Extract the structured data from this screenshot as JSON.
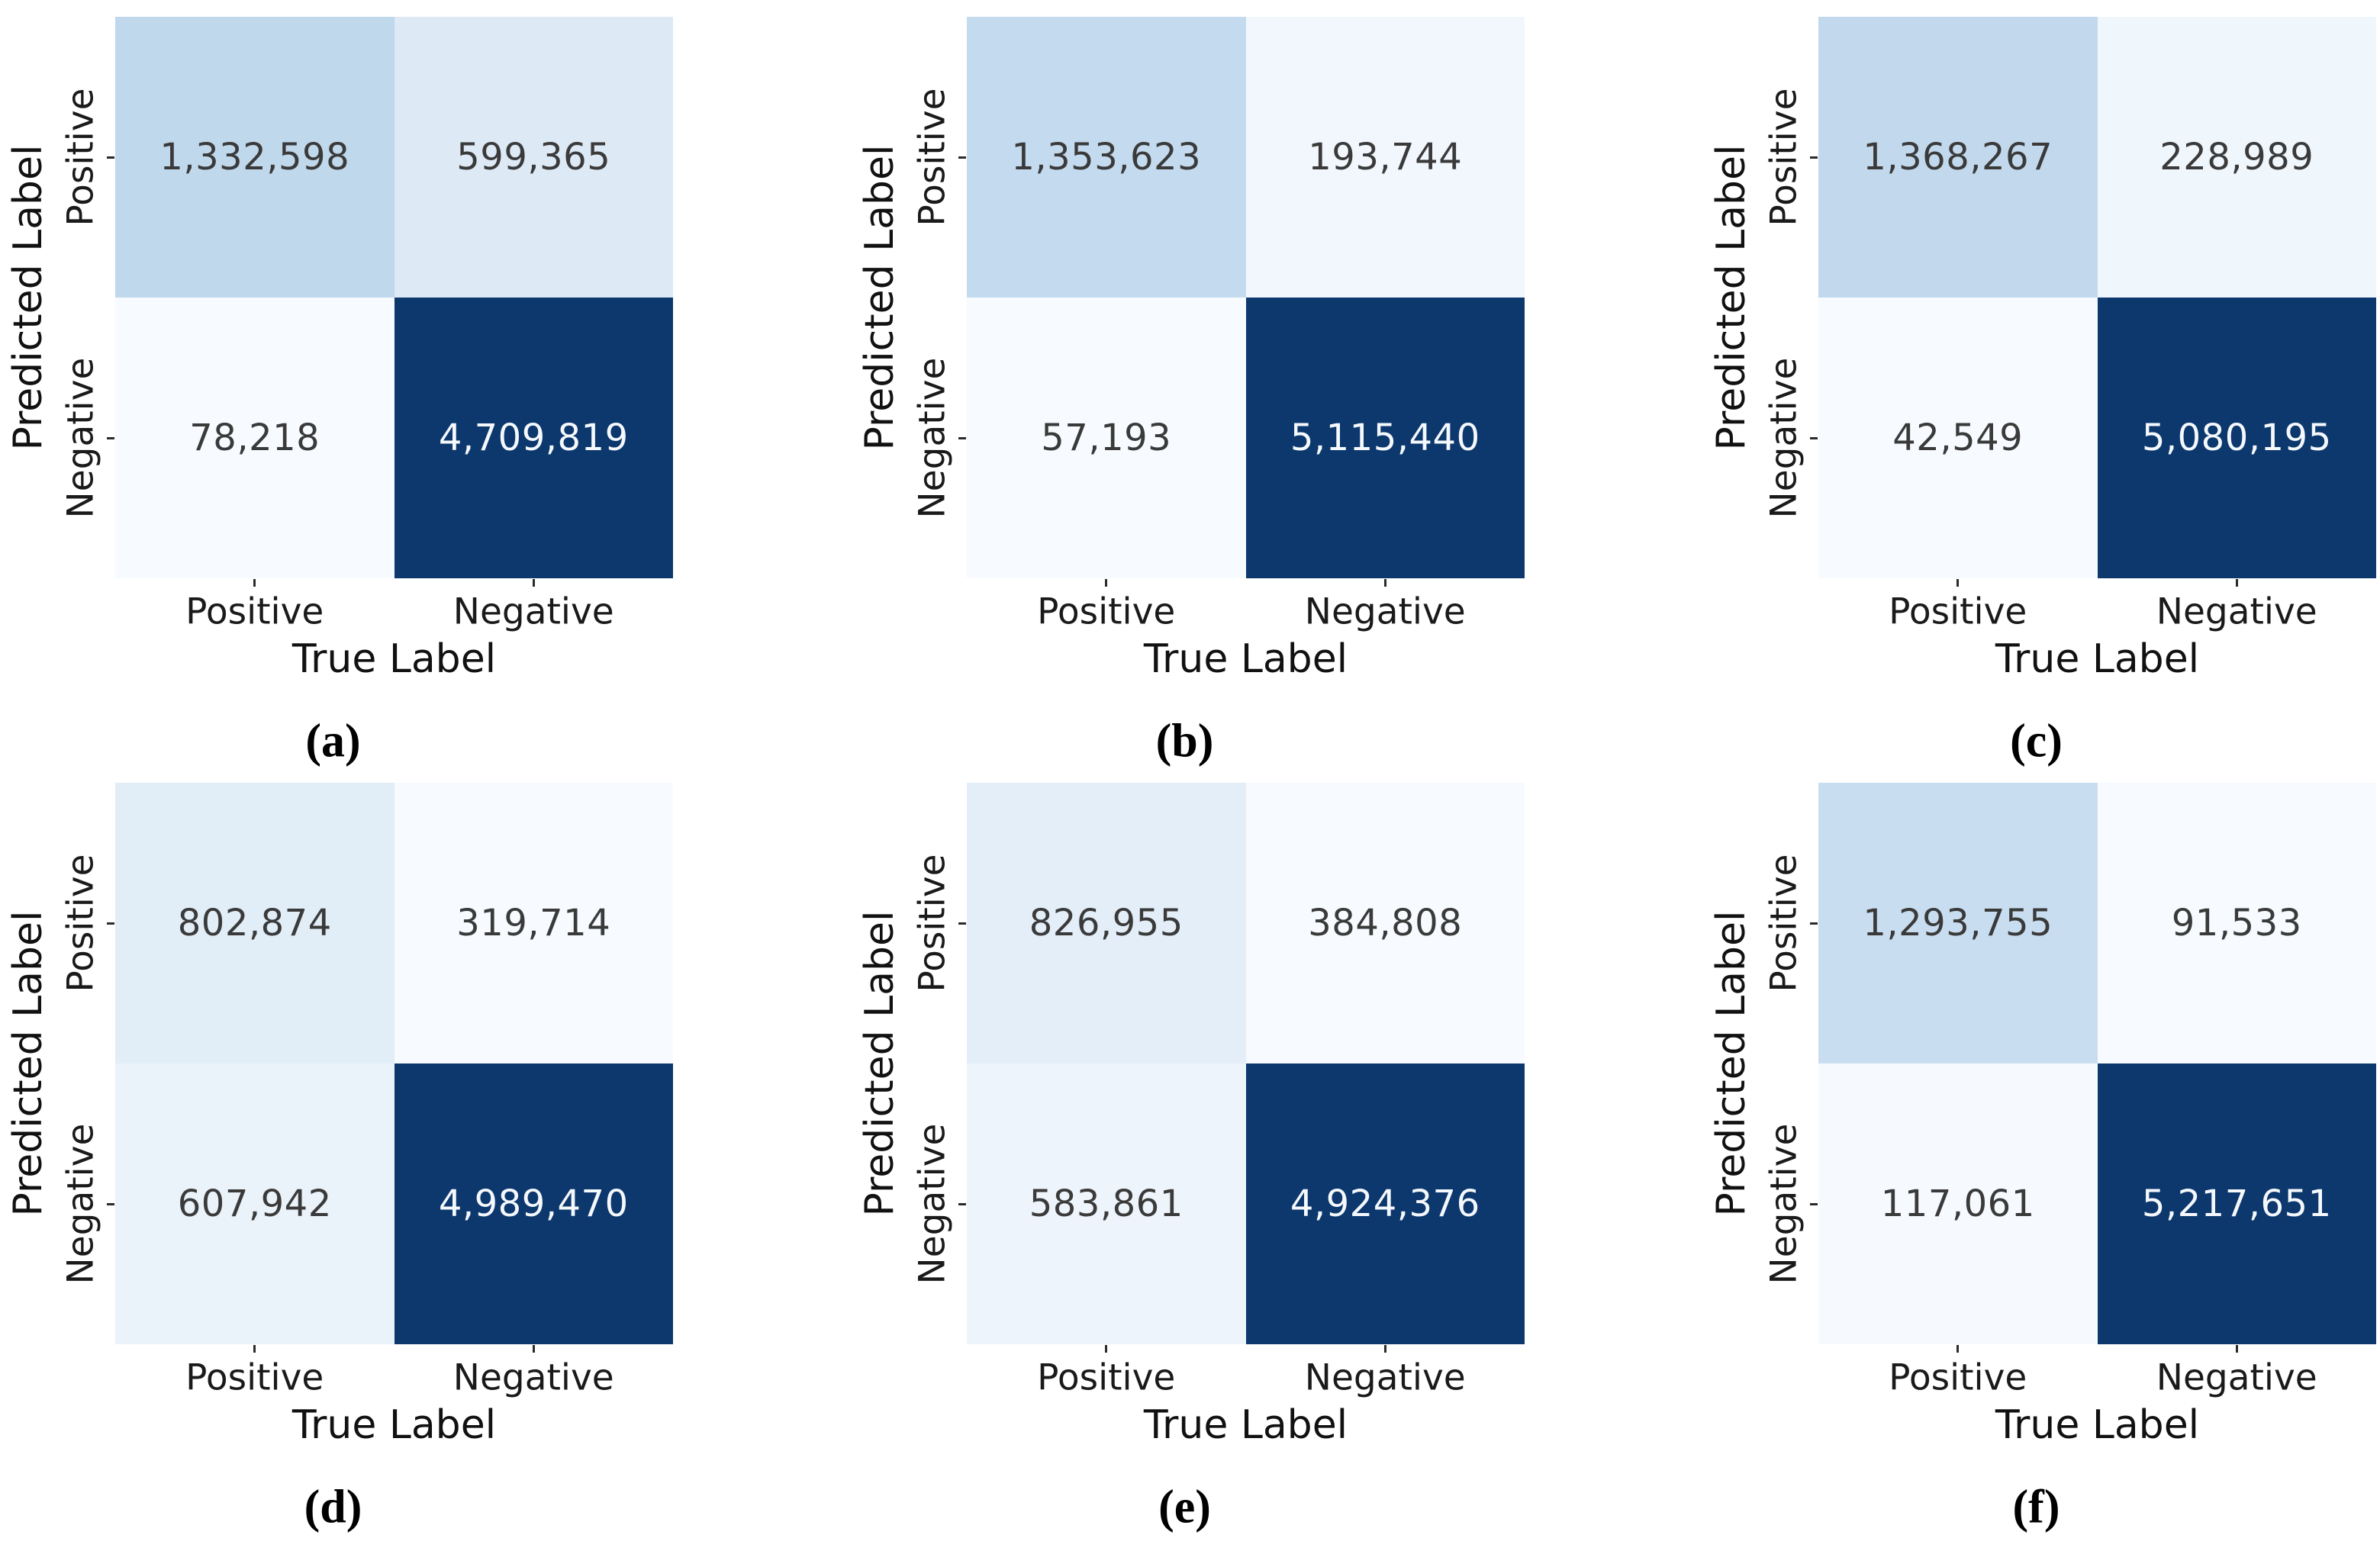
{
  "figure": {
    "background_color": "#ffffff",
    "colormap": {
      "name": "Blues",
      "min_color": "#f7fbff",
      "max_color": "#0c386e"
    },
    "axis": {
      "xlabel": "True Label",
      "ylabel": "Predicted Label",
      "x_tick_labels": [
        "Positive",
        "Negative"
      ],
      "y_tick_labels": [
        "Positive",
        "Negative"
      ]
    }
  },
  "chart_data": [
    {
      "type": "heatmap",
      "panel": "a",
      "caption": "(a)",
      "xlabel": "True Label",
      "ylabel": "Predicted Label",
      "columns": [
        "Positive",
        "Negative"
      ],
      "rows": [
        "Positive",
        "Negative"
      ],
      "values": [
        [
          1332598,
          599365
        ],
        [
          78218,
          4709819
        ]
      ],
      "value_labels": [
        [
          "1,332,598",
          "599,365"
        ],
        [
          "78,218",
          "4,709,819"
        ]
      ],
      "cell_colors": [
        [
          "#c0d8ec",
          "#dde9f5"
        ],
        [
          "#f7fbff",
          "#0c386e"
        ]
      ],
      "text_colors": [
        [
          "#3a3a3a",
          "#3a3a3a"
        ],
        [
          "#3a3a3a",
          "#f5f8fc"
        ]
      ]
    },
    {
      "type": "heatmap",
      "panel": "b",
      "caption": "(b)",
      "xlabel": "True Label",
      "ylabel": "Predicted Label",
      "columns": [
        "Positive",
        "Negative"
      ],
      "rows": [
        "Positive",
        "Negative"
      ],
      "values": [
        [
          1353623,
          193744
        ],
        [
          57193,
          5115440
        ]
      ],
      "value_labels": [
        [
          "1,353,623",
          "193,744"
        ],
        [
          "57,193",
          "5,115,440"
        ]
      ],
      "cell_colors": [
        [
          "#c4daee",
          "#f1f7fd"
        ],
        [
          "#f7fbff",
          "#0c386e"
        ]
      ],
      "text_colors": [
        [
          "#3a3a3a",
          "#3a3a3a"
        ],
        [
          "#3a3a3a",
          "#f5f8fc"
        ]
      ]
    },
    {
      "type": "heatmap",
      "panel": "c",
      "caption": "(c)",
      "xlabel": "True Label",
      "ylabel": "Predicted Label",
      "columns": [
        "Positive",
        "Negative"
      ],
      "rows": [
        "Positive",
        "Negative"
      ],
      "values": [
        [
          1368267,
          228989
        ],
        [
          42549,
          5080195
        ]
      ],
      "value_labels": [
        [
          "1,368,267",
          "228,989"
        ],
        [
          "42,549",
          "5,080,195"
        ]
      ],
      "cell_colors": [
        [
          "#c2d9ed",
          "#eff6fc"
        ],
        [
          "#f7fbff",
          "#0c386e"
        ]
      ],
      "text_colors": [
        [
          "#3a3a3a",
          "#3a3a3a"
        ],
        [
          "#3a3a3a",
          "#f5f8fc"
        ]
      ]
    },
    {
      "type": "heatmap",
      "panel": "d",
      "caption": "(d)",
      "xlabel": "True Label",
      "ylabel": "Predicted Label",
      "columns": [
        "Positive",
        "Negative"
      ],
      "rows": [
        "Positive",
        "Negative"
      ],
      "values": [
        [
          802874,
          319714
        ],
        [
          607942,
          4989470
        ]
      ],
      "value_labels": [
        [
          "802,874",
          "319,714"
        ],
        [
          "607,942",
          "4,989,470"
        ]
      ],
      "cell_colors": [
        [
          "#e1edf7",
          "#f7fbff"
        ],
        [
          "#eaf2fa",
          "#0c386e"
        ]
      ],
      "text_colors": [
        [
          "#3a3a3a",
          "#3a3a3a"
        ],
        [
          "#3a3a3a",
          "#f5f8fc"
        ]
      ]
    },
    {
      "type": "heatmap",
      "panel": "e",
      "caption": "(e)",
      "xlabel": "True Label",
      "ylabel": "Predicted Label",
      "columns": [
        "Positive",
        "Negative"
      ],
      "rows": [
        "Positive",
        "Negative"
      ],
      "values": [
        [
          826955,
          384808
        ],
        [
          583861,
          4924376
        ]
      ],
      "value_labels": [
        [
          "826,955",
          "384,808"
        ],
        [
          "583,861",
          "4,924,376"
        ]
      ],
      "cell_colors": [
        [
          "#e3eef8",
          "#f7fbff"
        ],
        [
          "#edf4fb",
          "#0c386e"
        ]
      ],
      "text_colors": [
        [
          "#3a3a3a",
          "#3a3a3a"
        ],
        [
          "#3a3a3a",
          "#f5f8fc"
        ]
      ]
    },
    {
      "type": "heatmap",
      "panel": "f",
      "caption": "(f)",
      "xlabel": "True Label",
      "ylabel": "Predicted Label",
      "columns": [
        "Positive",
        "Negative"
      ],
      "rows": [
        "Positive",
        "Negative"
      ],
      "values": [
        [
          1293755,
          91533
        ],
        [
          117061,
          5217651
        ]
      ],
      "value_labels": [
        [
          "1,293,755",
          "91,533"
        ],
        [
          "117,061",
          "5,217,651"
        ]
      ],
      "cell_colors": [
        [
          "#c9ddf0",
          "#f7fbff"
        ],
        [
          "#f6fafe",
          "#0c386e"
        ]
      ],
      "text_colors": [
        [
          "#3a3a3a",
          "#3a3a3a"
        ],
        [
          "#3a3a3a",
          "#f5f8fc"
        ]
      ]
    }
  ]
}
